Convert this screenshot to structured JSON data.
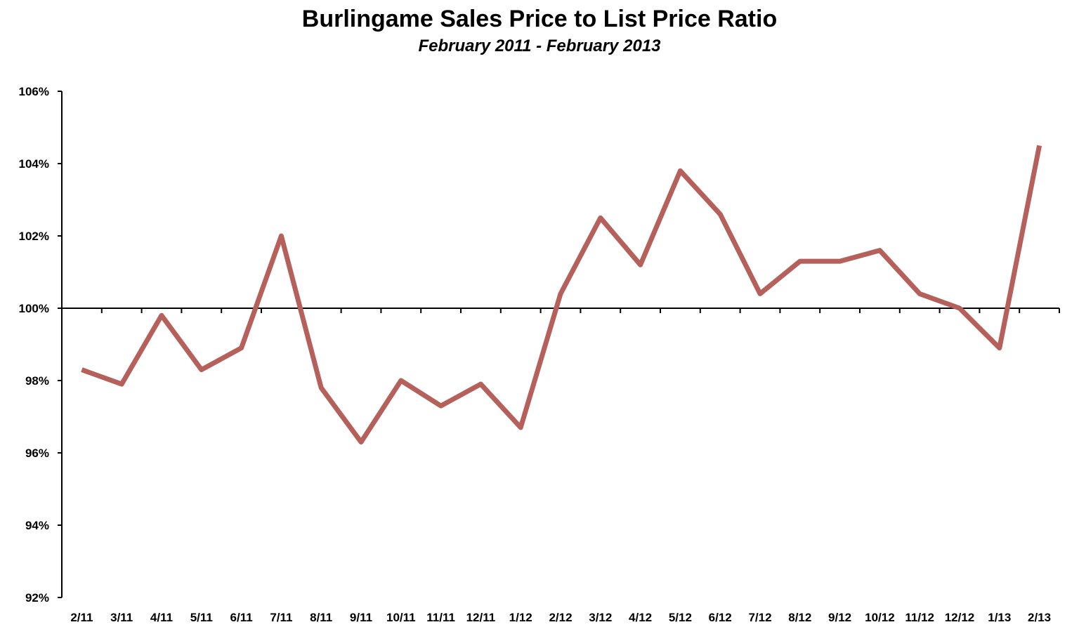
{
  "chart_data": {
    "type": "line",
    "title": "Burlingame Sales Price to List Price Ratio",
    "subtitle": "February 2011 - February 2013",
    "xlabel": "",
    "ylabel": "",
    "categories": [
      "2/11",
      "3/11",
      "4/11",
      "5/11",
      "6/11",
      "7/11",
      "8/11",
      "9/11",
      "10/11",
      "11/11",
      "12/11",
      "1/12",
      "2/12",
      "3/12",
      "4/12",
      "5/12",
      "6/12",
      "7/12",
      "8/12",
      "9/12",
      "10/12",
      "11/12",
      "12/12",
      "1/13",
      "2/13"
    ],
    "series": [
      {
        "values": [
          98.3,
          97.9,
          99.8,
          98.3,
          98.9,
          102.0,
          97.8,
          96.3,
          98.0,
          97.3,
          97.9,
          96.7,
          100.4,
          102.5,
          101.2,
          103.8,
          102.6,
          100.4,
          101.3,
          101.3,
          101.6,
          100.4,
          100.0,
          98.9,
          104.5
        ],
        "color": "#b5605a"
      }
    ],
    "ylim": [
      92,
      106
    ],
    "yticks": [
      92,
      94,
      96,
      98,
      100,
      102,
      104,
      106
    ],
    "ytick_labels": [
      "92%",
      "94%",
      "96%",
      "98%",
      "100%",
      "102%",
      "104%",
      "106%"
    ],
    "reference_line": 100,
    "grid": false,
    "legend": "none"
  }
}
